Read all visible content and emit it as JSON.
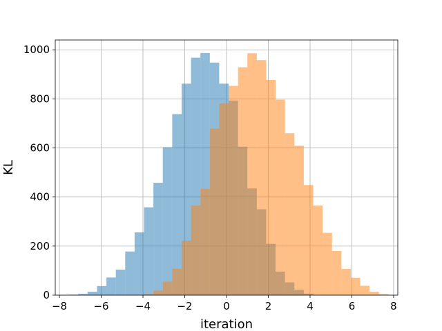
{
  "chart_data": {
    "type": "bar",
    "subtype": "histogram",
    "title": "",
    "xlabel": "iteration",
    "ylabel": "KL",
    "xlim": [
      -8.2,
      8.2
    ],
    "ylim": [
      0,
      1040
    ],
    "xticks": [
      -8,
      -6,
      -4,
      -2,
      0,
      2,
      4,
      6,
      8
    ],
    "yticks": [
      0,
      200,
      400,
      600,
      800,
      1000
    ],
    "grid": true,
    "legend": "none",
    "bin_width": 0.45,
    "series": [
      {
        "color": "#1f77b4",
        "alpha": 0.5,
        "bin_start": -7.55,
        "values": [
          2,
          5,
          14,
          37,
          72,
          104,
          178,
          256,
          358,
          458,
          603,
          738,
          862,
          968,
          987,
          948,
          862,
          793,
          605,
          435,
          350,
          209,
          96,
          52,
          22,
          6,
          0,
          0,
          0,
          0,
          0,
          0,
          0
        ]
      },
      {
        "color": "#ff7f0e",
        "alpha": 0.5,
        "bin_start": -3.95,
        "values": [
          4,
          19,
          55,
          107,
          222,
          365,
          433,
          679,
          781,
          853,
          929,
          986,
          958,
          877,
          797,
          660,
          609,
          449,
          365,
          254,
          180,
          107,
          71,
          38,
          14,
          4
        ]
      }
    ]
  }
}
